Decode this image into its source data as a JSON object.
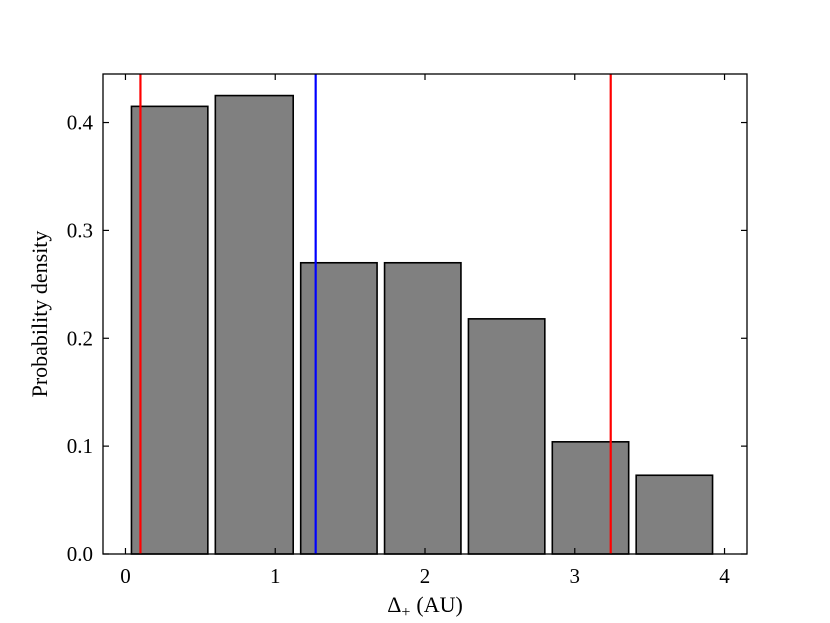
{
  "chart_data": {
    "type": "bar",
    "xlabel_symbol": "Δ",
    "xlabel_subscript": "+",
    "xlabel_unit": "(AU)",
    "ylabel": "Probability density",
    "xlim": [
      -0.15,
      4.15
    ],
    "ylim": [
      0.0,
      0.445
    ],
    "xticks": [
      0,
      1,
      2,
      3,
      4
    ],
    "xtick_labels": [
      "0",
      "1",
      "2",
      "3",
      "4"
    ],
    "yticks": [
      0.0,
      0.1,
      0.2,
      0.3,
      0.4
    ],
    "ytick_labels": [
      "0.0",
      "0.1",
      "0.2",
      "0.3",
      "0.4"
    ],
    "bins": [
      {
        "x_start": 0.04,
        "x_end": 0.55,
        "value": 0.415
      },
      {
        "x_start": 0.6,
        "x_end": 1.12,
        "value": 0.425
      },
      {
        "x_start": 1.17,
        "x_end": 1.68,
        "value": 0.27
      },
      {
        "x_start": 1.73,
        "x_end": 2.24,
        "value": 0.27
      },
      {
        "x_start": 2.29,
        "x_end": 2.8,
        "value": 0.218
      },
      {
        "x_start": 2.85,
        "x_end": 3.36,
        "value": 0.104
      },
      {
        "x_start": 3.41,
        "x_end": 3.92,
        "value": 0.073
      }
    ],
    "vertical_lines": [
      {
        "x": 0.1,
        "color": "#ff0000"
      },
      {
        "x": 1.27,
        "color": "#0000ff"
      },
      {
        "x": 3.24,
        "color": "#ff0000"
      }
    ],
    "bar_color": "#808080",
    "bar_edge_color": "#000000",
    "grid": false,
    "legend": "none"
  }
}
